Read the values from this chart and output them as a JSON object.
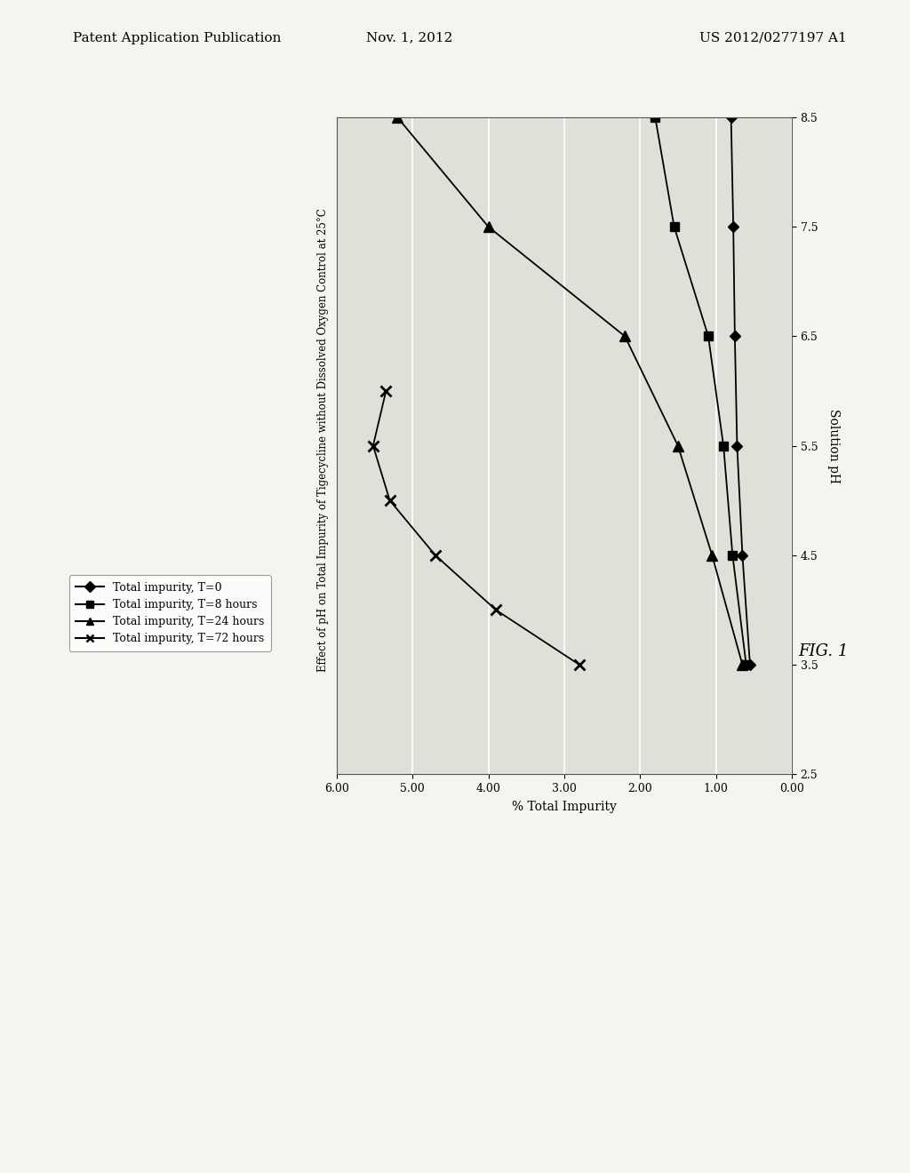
{
  "title_chart": "Effect of pH on Total Impurity of Tigecycline without Dissolved Oxygen Control at 25°C",
  "xlabel_display": "Solution pH",
  "ylabel_display": "% Total Impurity",
  "fig_label": "FIG. 1",
  "header_left": "Patent Application Publication",
  "header_center": "Nov. 1, 2012",
  "header_right": "US 2012/0277197 A1",
  "ph_lim": [
    2.5,
    8.5
  ],
  "imp_lim_reversed": [
    6.0,
    0.0
  ],
  "ph_ticks": [
    2.5,
    3.5,
    4.5,
    5.5,
    6.5,
    7.5,
    8.5
  ],
  "imp_ticks": [
    0.0,
    1.0,
    2.0,
    3.0,
    4.0,
    5.0,
    6.0
  ],
  "series": [
    {
      "label": "Total impurity, T=0",
      "marker": "D",
      "color": "#000000",
      "ph": [
        3.5,
        4.5,
        5.5,
        6.5,
        7.5,
        8.5
      ],
      "values": [
        0.55,
        0.65,
        0.72,
        0.75,
        0.77,
        0.8
      ]
    },
    {
      "label": "Total impurity, T=8 hours",
      "marker": "s",
      "color": "#000000",
      "ph": [
        3.5,
        4.5,
        5.5,
        6.5,
        7.5,
        8.5
      ],
      "values": [
        0.6,
        0.78,
        0.9,
        1.1,
        1.55,
        1.8
      ]
    },
    {
      "label": "Total impurity, T=24 hours",
      "marker": "^",
      "color": "#000000",
      "ph": [
        3.5,
        4.5,
        5.5,
        6.5,
        7.5,
        8.5
      ],
      "values": [
        0.65,
        1.05,
        1.5,
        2.2,
        4.0,
        5.2
      ]
    },
    {
      "label": "Total impurity, T=72 hours",
      "marker": "x",
      "color": "#000000",
      "ph": [
        3.5,
        4.0,
        4.5,
        5.0,
        5.5,
        6.0
      ],
      "values": [
        2.8,
        3.9,
        4.7,
        5.3,
        5.52,
        5.35
      ]
    }
  ],
  "background_color": "#f5f5f0",
  "plot_bg_color": "#e0e0d8",
  "grid_color": "#ffffff",
  "marker_sizes": [
    6,
    7,
    8,
    8
  ]
}
